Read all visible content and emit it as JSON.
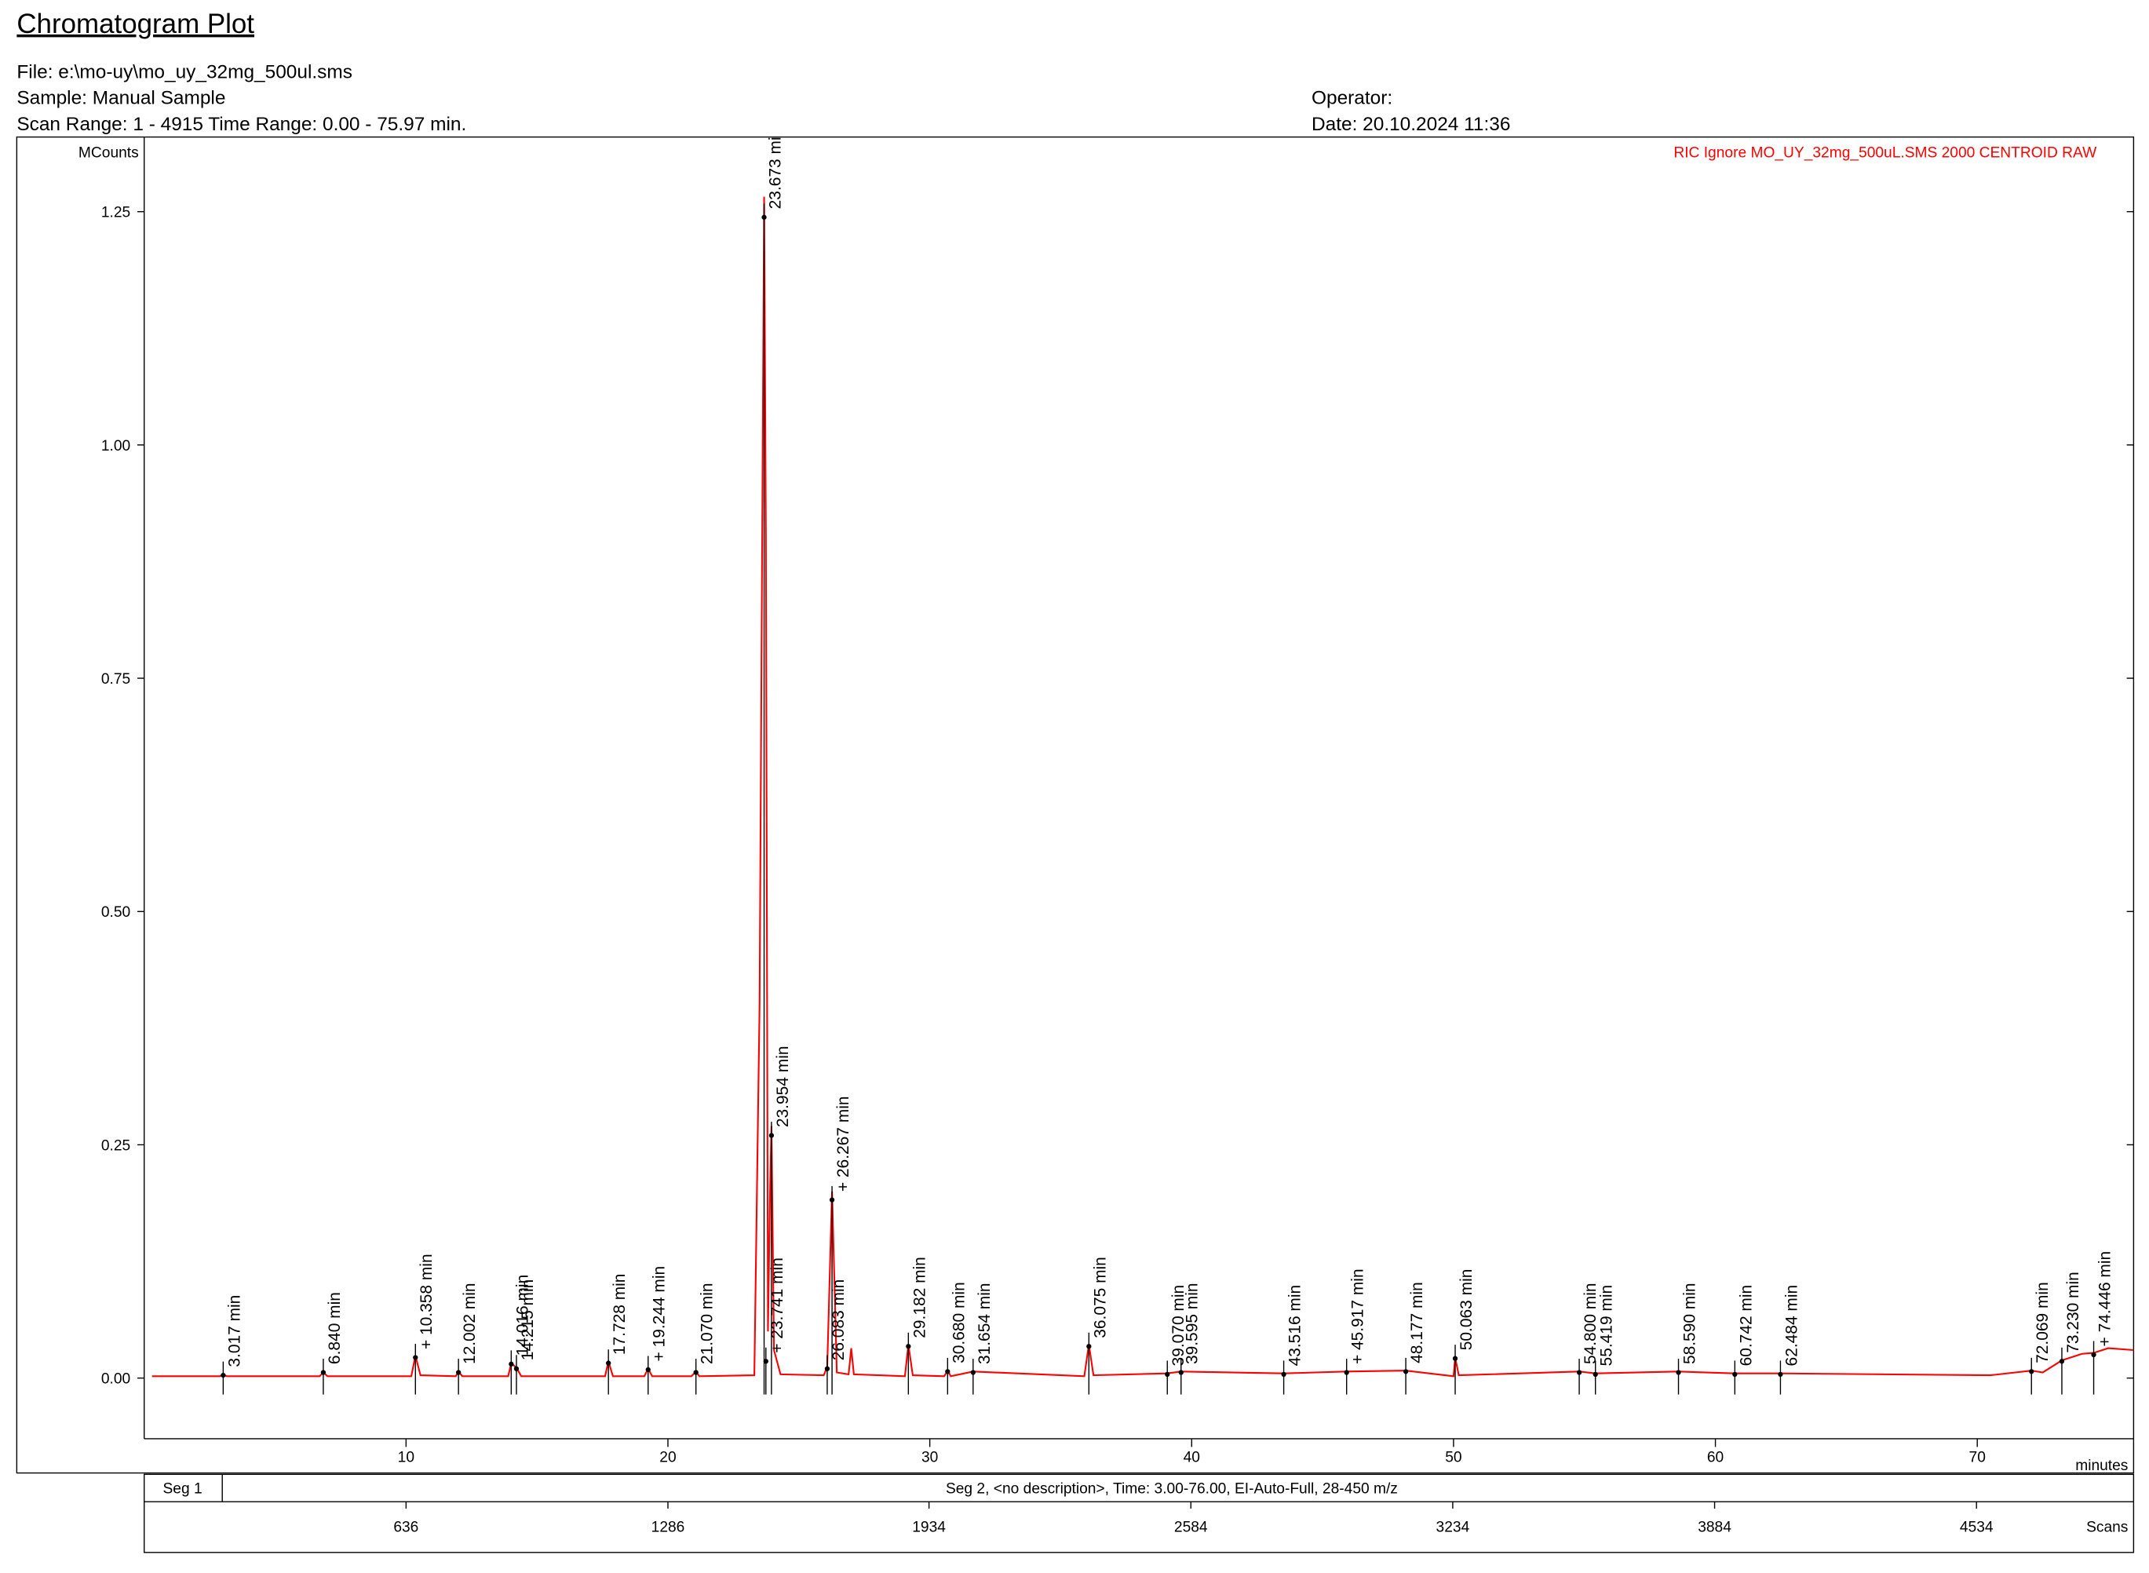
{
  "chart_data": {
    "type": "line",
    "title": "Chromatogram Plot",
    "file": "File: e:\\mo-uy\\mo_uy_32mg_500ul.sms",
    "sample": "Sample: Manual Sample",
    "scan_range": "Scan Range: 1 - 4915 Time Range: 0.00 - 75.97 min.",
    "operator": "Operator:",
    "date": "Date: 20.10.2024 11:36",
    "ylabel": "MCounts",
    "xlabel": "minutes",
    "x2label": "Scans",
    "segments": [
      "Seg 1",
      "Seg 2, <no description>, Time:  3.00-76.00, EI-Auto-Full, 28-450 m/z"
    ],
    "xlim": [
      0,
      75.97
    ],
    "xticks": [
      10,
      20,
      30,
      40,
      50,
      60,
      70
    ],
    "ylim": [
      -0.065,
      1.33
    ],
    "yticks": [
      {
        "value": 0,
        "label": "0.00"
      },
      {
        "value": 0.25,
        "label": "0.25"
      },
      {
        "value": 0.5,
        "label": "0.50"
      },
      {
        "value": 0.75,
        "label": "0.75"
      },
      {
        "value": 1,
        "label": "1.00"
      },
      {
        "value": 1.25,
        "label": "1.25"
      }
    ],
    "x2lim": [
      -14,
      4924
    ],
    "x2ticks": [
      636,
      1286,
      1934,
      2584,
      3234,
      3884,
      4534
    ],
    "series": [
      {
        "name": "RIC Ignore MO_UY_32mg_500uL.SMS 2000 CENTROID RAW",
        "color": "#ff0000",
        "x": [
          0.3,
          2.9,
          3.017,
          3.15,
          6.7,
          6.84,
          7.0,
          10.2,
          10.358,
          10.55,
          11.9,
          12.002,
          12.15,
          13.9,
          14.016,
          14.215,
          14.4,
          17.6,
          17.728,
          17.9,
          19.1,
          19.244,
          19.4,
          20.9,
          21.07,
          21.2,
          23.3,
          23.5,
          23.673,
          23.741,
          23.82,
          23.9,
          23.954,
          24.05,
          24.3,
          25.95,
          26.083,
          26.267,
          26.45,
          26.9,
          27.0,
          27.1,
          29.05,
          29.182,
          29.35,
          30.55,
          30.68,
          30.8,
          31.654,
          35.9,
          36.075,
          36.25,
          39.07,
          39.595,
          43.516,
          45.917,
          48.177,
          50.0,
          50.063,
          50.2,
          54.8,
          55.419,
          58.59,
          60.742,
          62.484,
          70.5,
          72.069,
          72.5,
          73.23,
          74.0,
          74.446,
          75.0,
          75.97
        ],
        "values": [
          0.002,
          0.002,
          0.004,
          0.002,
          0.002,
          0.006,
          0.002,
          0.002,
          0.024,
          0.003,
          0.002,
          0.007,
          0.002,
          0.002,
          0.016,
          0.011,
          0.002,
          0.002,
          0.018,
          0.002,
          0.002,
          0.01,
          0.002,
          0.002,
          0.007,
          0.002,
          0.003,
          0.4,
          1.266,
          0.9,
          0.05,
          0.2,
          0.27,
          0.03,
          0.004,
          0.003,
          0.012,
          0.2,
          0.006,
          0.004,
          0.032,
          0.004,
          0.002,
          0.036,
          0.003,
          0.002,
          0.008,
          0.002,
          0.007,
          0.002,
          0.036,
          0.003,
          0.005,
          0.007,
          0.005,
          0.007,
          0.008,
          0.002,
          0.022,
          0.003,
          0.007,
          0.005,
          0.007,
          0.005,
          0.005,
          0.003,
          0.008,
          0.006,
          0.019,
          0.026,
          0.027,
          0.032,
          0.03
        ]
      }
    ],
    "peaks": [
      {
        "x": 3.017,
        "y": 0.003,
        "label": "3.017 min"
      },
      {
        "x": 6.84,
        "y": 0.006,
        "label": "6.840 min"
      },
      {
        "x": 10.358,
        "y": 0.022,
        "label": "+ 10.358 min"
      },
      {
        "x": 12.002,
        "y": 0.006,
        "label": "12.002 min"
      },
      {
        "x": 14.016,
        "y": 0.015,
        "label": "14.016 min"
      },
      {
        "x": 14.215,
        "y": 0.01,
        "label": "14.215 min"
      },
      {
        "x": 17.728,
        "y": 0.016,
        "label": "17.728 min"
      },
      {
        "x": 19.244,
        "y": 0.009,
        "label": "+ 19.244 min"
      },
      {
        "x": 21.07,
        "y": 0.006,
        "label": "21.070 min"
      },
      {
        "x": 23.673,
        "y": 1.244,
        "label": "23.673 min"
      },
      {
        "x": 23.741,
        "y": 0.018,
        "label": "+ 23.741 min"
      },
      {
        "x": 23.954,
        "y": 0.26,
        "label": "23.954 min"
      },
      {
        "x": 26.083,
        "y": 0.01,
        "label": "26.083 min"
      },
      {
        "x": 26.267,
        "y": 0.191,
        "label": "+ 26.267 min"
      },
      {
        "x": 29.182,
        "y": 0.034,
        "label": "29.182 min"
      },
      {
        "x": 30.68,
        "y": 0.007,
        "label": "30.680 min"
      },
      {
        "x": 31.654,
        "y": 0.006,
        "label": "31.654 min"
      },
      {
        "x": 36.075,
        "y": 0.034,
        "label": "36.075 min"
      },
      {
        "x": 39.07,
        "y": 0.004,
        "label": "39.070 min"
      },
      {
        "x": 39.595,
        "y": 0.006,
        "label": "39.595 min"
      },
      {
        "x": 43.516,
        "y": 0.004,
        "label": "43.516 min"
      },
      {
        "x": 45.917,
        "y": 0.006,
        "label": "+ 45.917 min"
      },
      {
        "x": 48.177,
        "y": 0.007,
        "label": "48.177 min"
      },
      {
        "x": 50.063,
        "y": 0.021,
        "label": "50.063 min"
      },
      {
        "x": 54.8,
        "y": 0.006,
        "label": "54.800 min"
      },
      {
        "x": 55.419,
        "y": 0.004,
        "label": "55.419 min"
      },
      {
        "x": 58.59,
        "y": 0.006,
        "label": "58.590 min"
      },
      {
        "x": 60.742,
        "y": 0.004,
        "label": "60.742 min"
      },
      {
        "x": 62.484,
        "y": 0.004,
        "label": "62.484 min"
      },
      {
        "x": 72.069,
        "y": 0.007,
        "label": "72.069 min"
      },
      {
        "x": 73.23,
        "y": 0.018,
        "label": "73.230 min"
      },
      {
        "x": 74.446,
        "y": 0.025,
        "label": "+ 74.446 min"
      }
    ]
  }
}
